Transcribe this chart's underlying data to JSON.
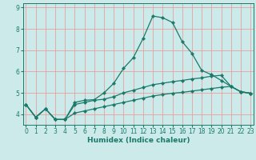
{
  "title": "",
  "xlabel": "Humidex (Indice chaleur)",
  "ylabel": "",
  "background_color": "#cceaea",
  "grid_color": "#e8a0a0",
  "line_color": "#1a7a6a",
  "x_values": [
    0,
    1,
    2,
    3,
    4,
    5,
    6,
    7,
    8,
    9,
    10,
    11,
    12,
    13,
    14,
    15,
    16,
    17,
    18,
    19,
    20,
    21,
    22,
    23
  ],
  "line1_y": [
    4.45,
    3.85,
    4.25,
    3.75,
    3.75,
    4.55,
    4.65,
    4.68,
    5.0,
    5.45,
    6.15,
    6.65,
    7.55,
    8.6,
    8.52,
    8.3,
    7.4,
    6.85,
    6.05,
    5.85,
    5.58,
    5.3,
    5.05,
    4.98
  ],
  "line2_y": [
    4.45,
    3.85,
    4.25,
    3.75,
    3.75,
    4.45,
    4.55,
    4.65,
    4.7,
    4.82,
    5.0,
    5.12,
    5.25,
    5.38,
    5.45,
    5.52,
    5.58,
    5.65,
    5.7,
    5.78,
    5.82,
    5.3,
    5.05,
    4.98
  ],
  "line3_y": [
    4.45,
    3.85,
    4.25,
    3.75,
    3.75,
    4.05,
    4.15,
    4.25,
    4.35,
    4.45,
    4.55,
    4.65,
    4.75,
    4.85,
    4.92,
    4.98,
    5.02,
    5.08,
    5.14,
    5.2,
    5.26,
    5.3,
    5.05,
    4.98
  ],
  "xlim": [
    -0.3,
    23.3
  ],
  "ylim": [
    3.5,
    9.2
  ],
  "yticks": [
    4,
    5,
    6,
    7,
    8,
    9
  ],
  "xticks": [
    0,
    1,
    2,
    3,
    4,
    5,
    6,
    7,
    8,
    9,
    10,
    11,
    12,
    13,
    14,
    15,
    16,
    17,
    18,
    19,
    20,
    21,
    22,
    23
  ],
  "marker": "D",
  "markersize": 2.2,
  "linewidth": 0.9,
  "tick_fontsize": 5.5,
  "xlabel_fontsize": 6.5
}
